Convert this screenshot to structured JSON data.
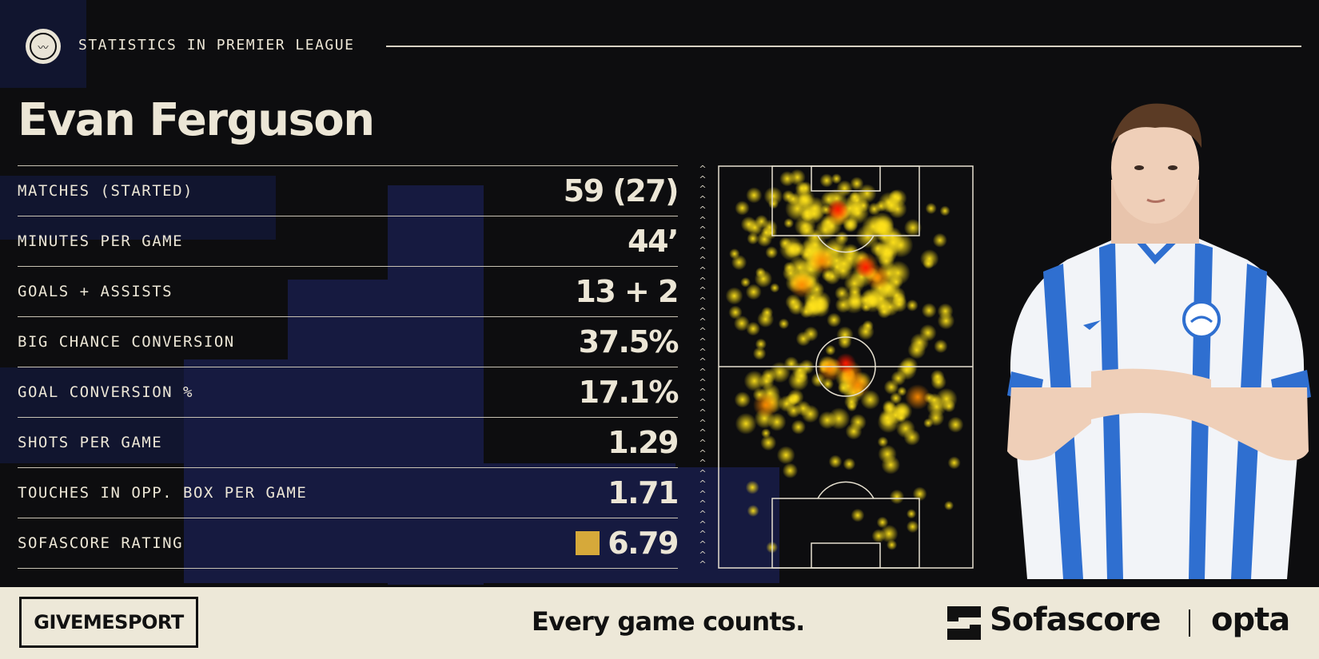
{
  "header": {
    "section_title": "STATISTICS IN PREMIER LEAGUE"
  },
  "player": {
    "name": "Evan Ferguson"
  },
  "stats": [
    {
      "label": "MATCHES (STARTED)",
      "value": "59 (27)"
    },
    {
      "label": "MINUTES PER GAME",
      "value": "44’"
    },
    {
      "label": "GOALS + ASSISTS",
      "value": "13 + 2"
    },
    {
      "label": "BIG CHANCE CONVERSION",
      "value": "37.5%"
    },
    {
      "label": "GOAL CONVERSION %",
      "value": "17.1%"
    },
    {
      "label": "SHOTS PER GAME",
      "value": "1.29"
    },
    {
      "label": "TOUCHES IN OPP. BOX PER GAME",
      "value": "1.71"
    },
    {
      "label": "SOFASCORE RATING",
      "value": "6.79"
    }
  ],
  "rating_color": "#d6a93a",
  "heatmap": {
    "attack_direction": "up"
  },
  "kit_colors": {
    "stripe": "#2f6fd0",
    "base": "#f2f4f8"
  },
  "footer": {
    "brand": "GIVEMESPORT",
    "tagline": "Every game counts.",
    "partner_1": "Sofascore",
    "partner_2": "opta"
  }
}
